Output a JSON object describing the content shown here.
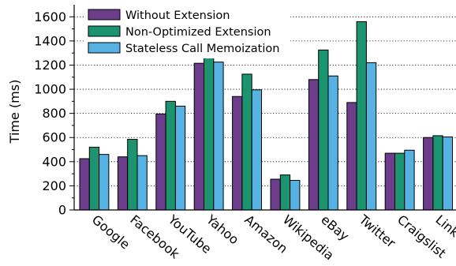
{
  "chart_data": {
    "type": "bar",
    "title": "",
    "xlabel": "",
    "ylabel": "Time (ms)",
    "ylim": [
      0,
      1700
    ],
    "yticks": [
      0,
      200,
      400,
      600,
      800,
      1000,
      1200,
      1400,
      1600
    ],
    "grid": "horizontal dotted",
    "legend_position": "top-left",
    "categories": [
      "Google",
      "Facebook",
      "YouTube",
      "Yahoo",
      "Amazon",
      "Wikipedia",
      "eBay",
      "Twitter",
      "Craigslist",
      "LinkedIn"
    ],
    "series": [
      {
        "name": "Without Extension",
        "color": "#6b3d8a",
        "values": [
          425,
          440,
          795,
          1215,
          940,
          255,
          1080,
          890,
          470,
          600
        ]
      },
      {
        "name": "Non-Optimized Extension",
        "color": "#1d9470",
        "values": [
          520,
          585,
          900,
          1260,
          1125,
          290,
          1325,
          1560,
          470,
          615
        ]
      },
      {
        "name": "Stateless Call Memoization",
        "color": "#56b2e3",
        "values": [
          460,
          450,
          860,
          1225,
          995,
          245,
          1110,
          1220,
          495,
          605
        ]
      }
    ]
  }
}
